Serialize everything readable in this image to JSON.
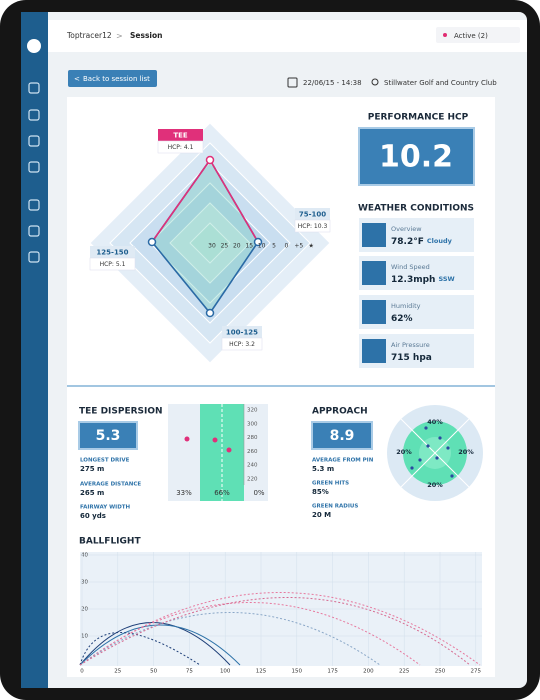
{
  "header": {
    "breadcrumb": [
      "Toptracer12",
      "Session"
    ],
    "status": "Active (2)"
  },
  "toolbar": {
    "back": "Back to session list",
    "datetime": "22/06/15 - 14:38",
    "location": "Stillwater Golf and Country Club"
  },
  "radar": {
    "ticks": [
      "30",
      "25",
      "20",
      "15",
      "10",
      "5",
      "0",
      "+5",
      "★"
    ],
    "labels": [
      {
        "name": "TEE",
        "hcp": "HCP: 4.1"
      },
      {
        "name": "75-100",
        "hcp": "HCP: 10.3"
      },
      {
        "name": "100-125",
        "hcp": "HCP: 3.2"
      },
      {
        "name": "125-150",
        "hcp": "HCP: 5.1"
      }
    ]
  },
  "performance": {
    "title": "PERFORMANCE HCP",
    "value": "10.2"
  },
  "weather": {
    "title": "WEATHER CONDITIONS",
    "items": [
      {
        "label": "Overview",
        "value": "78.2°F",
        "unit": "Cloudy"
      },
      {
        "label": "Wind Speed",
        "value": "12.3mph",
        "unit": "SSW"
      },
      {
        "label": "Humidity",
        "value": "62%"
      },
      {
        "label": "Air Pressure",
        "value": "715 hpa"
      }
    ]
  },
  "tee": {
    "title": "TEE DISPERSION",
    "value": "5.3",
    "stats": [
      {
        "label": "LONGEST DRIVE",
        "value": "275 m"
      },
      {
        "label": "AVERAGE DISTANCE",
        "value": "265 m"
      },
      {
        "label": "FAIRWAY WIDTH",
        "value": "60 yds"
      }
    ],
    "ticks": [
      "320",
      "300",
      "280",
      "260",
      "240",
      "220"
    ],
    "percents": [
      "33%",
      "66%",
      "0%"
    ]
  },
  "approach": {
    "title": "APPROACH",
    "value": "8.9",
    "stats": [
      {
        "label": "AVERAGE FROM PIN",
        "value": "5.3 m"
      },
      {
        "label": "GREEN HITS",
        "value": "85%"
      },
      {
        "label": "GREEN RADIUS",
        "value": "20 M"
      }
    ],
    "percents": [
      "40%",
      "20%",
      "20%",
      "20%"
    ]
  },
  "ballflight": {
    "title": "BALLFLIGHT",
    "yticks": [
      "40",
      "30",
      "20",
      "10"
    ],
    "xticks": [
      "0",
      "25",
      "50",
      "75",
      "100",
      "125",
      "150",
      "175",
      "200",
      "225",
      "250",
      "275"
    ]
  }
}
